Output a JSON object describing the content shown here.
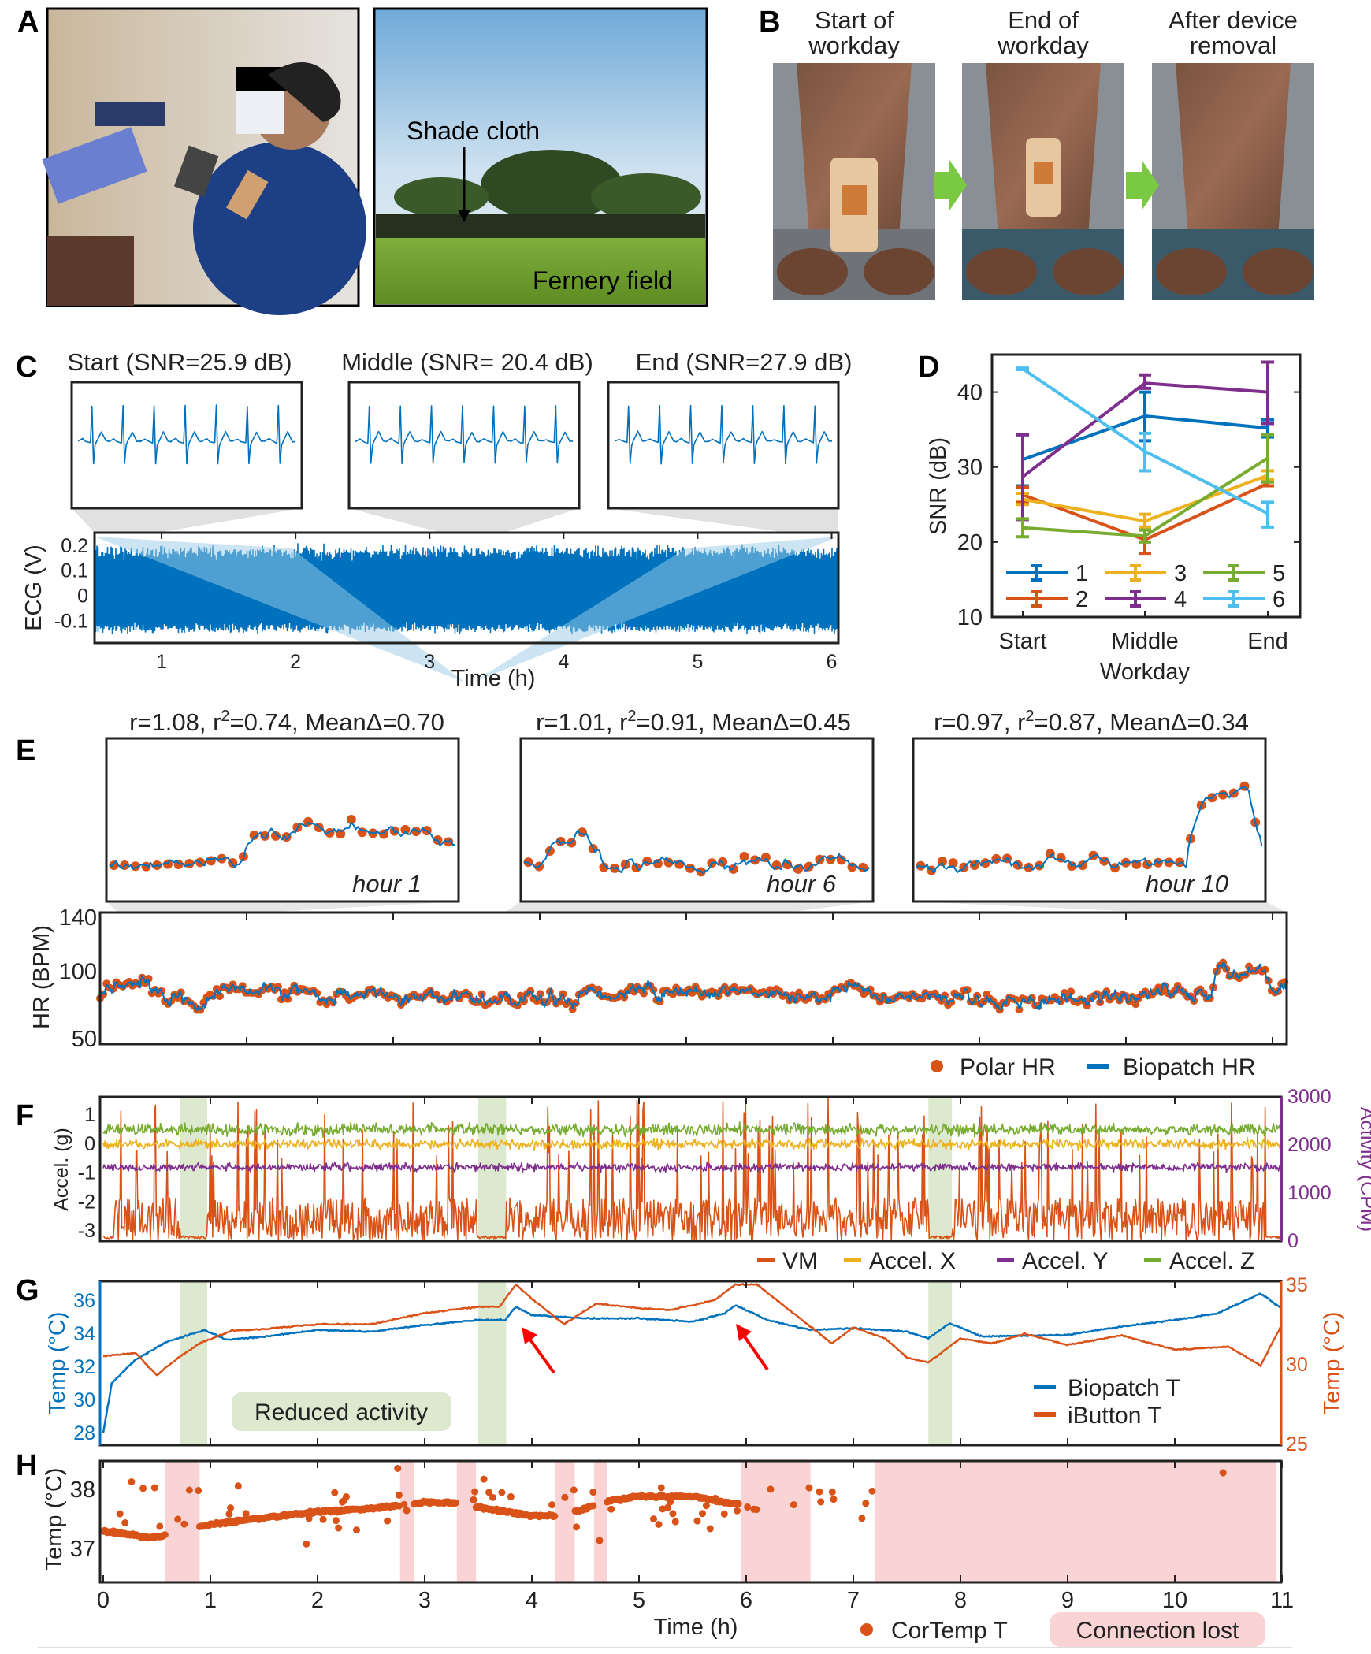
{
  "panel_labels": [
    "A",
    "B",
    "C",
    "D",
    "E",
    "F",
    "G",
    "H"
  ],
  "panel_a": {
    "shade_cloth": "Shade cloth",
    "fernery_field": "Fernery field"
  },
  "panel_b": {
    "headers": [
      [
        "Start of",
        "workday"
      ],
      [
        "End of",
        "workday"
      ],
      [
        "After device",
        "removal"
      ]
    ]
  },
  "colors": {
    "blue": "#0072BD",
    "orange": "#D95319",
    "yellow": "#EDB120",
    "purple": "#7E2F8E",
    "green": "#77AC30",
    "cyan": "#4DBEEE",
    "shade_green": "#dde9cf",
    "shade_pink": "#fad4d4"
  },
  "chart_data": [
    {
      "id": "C",
      "type": "line",
      "inset_titles": [
        "Start (SNR=25.9 dB)",
        "Middle (SNR= 20.4 dB)",
        "End (SNR=27.9 dB)"
      ],
      "ylabel": "ECG (V)",
      "xlabel": "Time (h)",
      "yticks": [
        "0.2",
        "0.1",
        "0",
        "-0.1"
      ],
      "ytick_values": [
        0.2,
        0.1,
        0,
        -0.1
      ],
      "xticks": [
        "1",
        "2",
        "3",
        "4",
        "5",
        "6"
      ],
      "xtick_values": [
        1,
        2,
        3,
        4,
        5,
        6
      ],
      "xlim": [
        0.5,
        6.05
      ],
      "ylim": [
        -0.19,
        0.25
      ]
    },
    {
      "id": "D",
      "type": "line",
      "xlabel": "Workday",
      "ylabel": "SNR (dB)",
      "categories": [
        "Start",
        "Middle",
        "End"
      ],
      "yticks": [
        "10",
        "20",
        "30",
        "40"
      ],
      "ytick_values": [
        10,
        20,
        30,
        40
      ],
      "ylim": [
        10,
        45
      ],
      "series": [
        {
          "name": "1",
          "color": "#0072BD",
          "values": [
            31.0,
            36.8,
            35.2
          ],
          "lo": [
            27.5,
            33.5,
            34.0
          ],
          "hi": [
            34.3,
            40.0,
            36.3
          ]
        },
        {
          "name": "2",
          "color": "#D95319",
          "values": [
            26.3,
            20.3,
            27.8
          ],
          "lo": [
            25.3,
            18.5,
            27.5
          ],
          "hi": [
            27.3,
            22.0,
            28.2
          ]
        },
        {
          "name": "3",
          "color": "#EDB120",
          "values": [
            25.7,
            22.8,
            28.9
          ],
          "lo": [
            25.0,
            22.0,
            28.3
          ],
          "hi": [
            26.5,
            23.7,
            29.5
          ]
        },
        {
          "name": "4",
          "color": "#7E2F8E",
          "values": [
            28.7,
            41.2,
            40.0
          ],
          "lo": [
            23.0,
            40.5,
            35.8
          ],
          "hi": [
            34.3,
            42.3,
            44.0
          ]
        },
        {
          "name": "5",
          "color": "#77AC30",
          "values": [
            21.9,
            20.8,
            31.2
          ],
          "lo": [
            20.7,
            20.0,
            28.0
          ],
          "hi": [
            23.1,
            21.6,
            34.3
          ]
        },
        {
          "name": "6",
          "color": "#4DBEEE",
          "values": [
            43.1,
            32.1,
            23.8
          ],
          "lo": [
            43.0,
            29.5,
            22.0
          ],
          "hi": [
            43.2,
            34.5,
            25.3
          ]
        }
      ],
      "legend": "bottom-inside"
    },
    {
      "id": "E",
      "type": "line",
      "inset_titles": [
        {
          "pre": "r=1.08, r",
          "sup": "2",
          "post": "=0.74, MeanΔ=0.70"
        },
        {
          "pre": "r=1.01, r",
          "sup": "2",
          "post": "=0.91, MeanΔ=0.45"
        },
        {
          "pre": "r=0.97, r",
          "sup": "2",
          "post": "=0.87, MeanΔ=0.34"
        }
      ],
      "inset_labels": [
        "hour 1",
        "hour 6",
        "hour 10"
      ],
      "ylabel": "HR (BPM)",
      "yticks": [
        "140",
        "100",
        "50"
      ],
      "ytick_values": [
        140,
        100,
        50
      ],
      "ylim": [
        46,
        143.5
      ],
      "xlim": [
        0,
        11
      ],
      "legend": [
        "Polar HR",
        "Biopatch HR"
      ]
    },
    {
      "id": "F",
      "type": "line",
      "ylabel": "Accel. (g)",
      "ylabel_right": "Activity (CPM)",
      "yticks": [
        "1",
        "0",
        "-1",
        "-2",
        "-3"
      ],
      "ytick_values": [
        1,
        0,
        -1,
        -2,
        -3
      ],
      "yticks_right": [
        "3000",
        "2000",
        "1000",
        "0"
      ],
      "ytick_right_values": [
        3000,
        2000,
        1000,
        0
      ],
      "ylim": [
        -3.35,
        1.63
      ],
      "ylim_right": [
        0,
        3000
      ],
      "xlim": [
        0,
        11
      ],
      "legend": [
        "VM",
        "Accel. X",
        "Accel. Y",
        "Accel. Z"
      ],
      "reduced_activity_h": [
        [
          0.72,
          0.97
        ],
        [
          3.5,
          3.76
        ],
        [
          7.7,
          7.92
        ]
      ]
    },
    {
      "id": "G",
      "type": "line",
      "ylabel": "Temp (°C)",
      "ylabel_right": "Temp (°C)",
      "yticks": [
        "36",
        "34",
        "32",
        "30",
        "28"
      ],
      "ytick_values": [
        36,
        34,
        32,
        30,
        28
      ],
      "yticks_right": [
        "35",
        "30",
        "25"
      ],
      "ytick_right_values": [
        35,
        30,
        25
      ],
      "ylim": [
        27.24,
        37.14
      ],
      "ylim_right": [
        24.9,
        35.2
      ],
      "xlim": [
        0,
        11
      ],
      "annotation": "Reduced activity",
      "legend": [
        "Biopatch T",
        "iButton T"
      ],
      "series": [
        {
          "name": "Biopatch T",
          "axis": "left",
          "color": "#0072BD",
          "t": [
            0,
            0.08,
            0.3,
            0.6,
            0.95,
            1.15,
            1.5,
            2,
            2.5,
            3,
            3.5,
            3.75,
            3.85,
            4,
            4.5,
            5,
            5.5,
            5.8,
            5.9,
            6.2,
            6.6,
            7,
            7.5,
            7.7,
            7.9,
            8.2,
            9,
            9.5,
            10,
            10.4,
            10.8,
            11
          ],
          "v": [
            28,
            31,
            32.4,
            33.5,
            34.2,
            33.6,
            33.8,
            34.2,
            34.1,
            34.5,
            34.8,
            34.8,
            35.6,
            35.1,
            34.9,
            34.9,
            34.7,
            35.2,
            35.7,
            34.8,
            34.2,
            34.3,
            34.1,
            33.7,
            34.6,
            33.8,
            33.9,
            34.4,
            34.8,
            35.2,
            36.4,
            35.5
          ]
        },
        {
          "name": "iButton T",
          "axis": "right",
          "color": "#D95319",
          "t": [
            0,
            0.3,
            0.5,
            0.7,
            0.9,
            1.2,
            1.5,
            2,
            2.5,
            3,
            3.5,
            3.7,
            3.85,
            4,
            4.3,
            4.6,
            5,
            5.3,
            5.7,
            5.9,
            6.1,
            6.4,
            6.8,
            7,
            7.3,
            7.5,
            7.7,
            8,
            8.3,
            8.6,
            9,
            9.5,
            10,
            10.5,
            10.8,
            11
          ],
          "v": [
            30.5,
            30.7,
            29.3,
            30.4,
            31.3,
            32.1,
            32.2,
            32.5,
            32.5,
            33.2,
            33.6,
            33.6,
            35,
            34.1,
            32.5,
            33.8,
            33.5,
            33.4,
            34,
            35,
            35,
            33.4,
            31.3,
            32.3,
            31.6,
            30.4,
            30.1,
            31.6,
            31.3,
            31.9,
            31.2,
            31.8,
            30.9,
            31.1,
            29.9,
            32.5
          ]
        }
      ]
    },
    {
      "id": "H",
      "type": "scatter",
      "ylabel": "Temp (°C)",
      "xlabel": "Time (h)",
      "yticks": [
        "38",
        "37"
      ],
      "ytick_values": [
        38,
        37
      ],
      "xticks": [
        "0",
        "1",
        "2",
        "3",
        "4",
        "5",
        "6",
        "7",
        "8",
        "9",
        "10",
        "11"
      ],
      "xtick_values": [
        0,
        1,
        2,
        3,
        4,
        5,
        6,
        7,
        8,
        9,
        10,
        11
      ],
      "ylim": [
        36.43,
        38.48
      ],
      "xlim": [
        0,
        11
      ],
      "legend": [
        "CorTemp T",
        "Connection lost"
      ],
      "connection_lost_h": [
        [
          0.58,
          0.9
        ],
        [
          2.77,
          2.9
        ],
        [
          3.3,
          3.48
        ],
        [
          4.22,
          4.4
        ],
        [
          4.58,
          4.7
        ],
        [
          5.95,
          6.6
        ],
        [
          7.2,
          10.95
        ]
      ],
      "baseline": {
        "t": [
          0,
          0.45,
          0.9,
          1.5,
          2,
          2.5,
          3,
          3.3,
          3.5,
          4,
          4.3,
          4.7,
          5,
          5.5,
          5.9
        ],
        "v": [
          37.3,
          37.18,
          37.38,
          37.52,
          37.62,
          37.68,
          37.78,
          37.78,
          37.7,
          37.55,
          37.55,
          37.8,
          37.88,
          37.88,
          37.75
        ]
      }
    }
  ]
}
